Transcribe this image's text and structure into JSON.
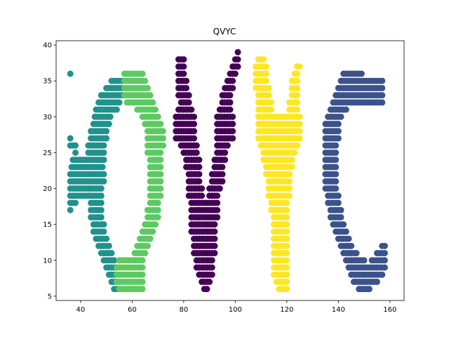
{
  "chart_data": {
    "type": "scatter",
    "title": "QVYC",
    "xlabel": "",
    "ylabel": "",
    "xlim": [
      30.5,
      165.5
    ],
    "ylim": [
      4.4,
      40.6
    ],
    "xticks": [
      40,
      60,
      80,
      100,
      120,
      140,
      160
    ],
    "yticks": [
      5,
      10,
      15,
      20,
      25,
      30,
      35,
      40
    ],
    "grid": false,
    "legend": "none",
    "point_size": 1,
    "series": [
      {
        "color": "#21918c",
        "rows": [
          [
            36,
            [
              36,
              36.5
            ]
          ],
          [
            35,
            [
              52,
              56
            ]
          ],
          [
            34,
            [
              50,
              56
            ]
          ],
          [
            33,
            [
              48,
              56
            ]
          ],
          [
            32,
            [
              47,
              55
            ]
          ],
          [
            31,
            [
              46,
              54
            ]
          ],
          [
            30,
            [
              45.5,
              52
            ]
          ],
          [
            29,
            [
              45,
              51
            ]
          ],
          [
            28,
            [
              44,
              50
            ]
          ],
          [
            27,
            [
              36,
              36
            ],
            [
              44,
              50
            ]
          ],
          [
            26,
            [
              36,
              38
            ],
            [
              43,
              49
            ]
          ],
          [
            25,
            [
              38,
              38
            ],
            [
              43,
              49
            ]
          ],
          [
            24,
            [
              37,
              49
            ]
          ],
          [
            23,
            [
              36.5,
              49
            ]
          ],
          [
            22,
            [
              36,
              49
            ]
          ],
          [
            21,
            [
              36,
              49
            ]
          ],
          [
            20,
            [
              36,
              48
            ]
          ],
          [
            19,
            [
              36,
              48
            ]
          ],
          [
            18,
            [
              36,
              38
            ],
            [
              44,
              48
            ]
          ],
          [
            17,
            [
              36,
              36
            ],
            [
              44,
              48
            ]
          ],
          [
            16,
            [
              44,
              48
            ]
          ],
          [
            15,
            [
              45,
              49
            ]
          ],
          [
            14,
            [
              45,
              49
            ]
          ],
          [
            13,
            [
              46,
              50
            ]
          ],
          [
            12,
            [
              47,
              51
            ]
          ],
          [
            11,
            [
              48,
              52
            ]
          ],
          [
            10,
            [
              49,
              53
            ]
          ],
          [
            9,
            [
              50,
              54
            ]
          ],
          [
            8,
            [
              51,
              54
            ]
          ],
          [
            7,
            [
              52,
              54
            ]
          ],
          [
            6,
            [
              53,
              54
            ]
          ]
        ]
      },
      {
        "color": "#5ec962",
        "rows": [
          [
            36,
            [
              57,
              64
            ]
          ],
          [
            35,
            [
              57,
              65
            ]
          ],
          [
            34,
            [
              57,
              66
            ]
          ],
          [
            33,
            [
              57,
              67
            ]
          ],
          [
            32,
            [
              58,
              68
            ]
          ],
          [
            31,
            [
              62,
              69
            ]
          ],
          [
            30,
            [
              64,
              70
            ]
          ],
          [
            29,
            [
              65,
              71
            ]
          ],
          [
            28,
            [
              66,
              72
            ]
          ],
          [
            27,
            [
              66,
              72
            ]
          ],
          [
            26,
            [
              66,
              72
            ]
          ],
          [
            25,
            [
              66,
              71
            ]
          ],
          [
            24,
            [
              67,
              71
            ]
          ],
          [
            23,
            [
              67,
              71
            ]
          ],
          [
            22,
            [
              67,
              71
            ]
          ],
          [
            21,
            [
              67,
              71
            ]
          ],
          [
            20,
            [
              67,
              71
            ]
          ],
          [
            19,
            [
              67,
              71
            ]
          ],
          [
            18,
            [
              67,
              70
            ]
          ],
          [
            17,
            [
              66,
              70
            ]
          ],
          [
            16,
            [
              66,
              70
            ]
          ],
          [
            15,
            [
              65,
              69
            ]
          ],
          [
            14,
            [
              64,
              68
            ]
          ],
          [
            13,
            [
              63,
              67
            ]
          ],
          [
            12,
            [
              62,
              66
            ]
          ],
          [
            11,
            [
              61,
              65
            ]
          ],
          [
            10,
            [
              55,
              64
            ]
          ],
          [
            9,
            [
              54,
              64
            ]
          ],
          [
            8,
            [
              54,
              64
            ]
          ],
          [
            7,
            [
              54,
              64
            ]
          ],
          [
            6,
            [
              55,
              64
            ]
          ]
        ]
      },
      {
        "color": "#440154",
        "rows": [
          [
            39,
            [
              101,
              101
            ]
          ],
          [
            38,
            [
              78,
              80
            ],
            [
              100,
              101
            ]
          ],
          [
            37,
            [
              78,
              80
            ],
            [
              99,
              101
            ]
          ],
          [
            36,
            [
              78,
              80
            ],
            [
              98,
              100
            ]
          ],
          [
            35,
            [
              78,
              81
            ],
            [
              97,
              99
            ]
          ],
          [
            34,
            [
              78,
              81
            ],
            [
              96,
              99
            ]
          ],
          [
            33,
            [
              78,
              82
            ],
            [
              95,
              98
            ]
          ],
          [
            32,
            [
              79,
              82
            ],
            [
              95,
              98
            ]
          ],
          [
            31,
            [
              78,
              83
            ],
            [
              94,
              98
            ]
          ],
          [
            30,
            [
              77,
              84
            ],
            [
              93,
              99
            ]
          ],
          [
            29,
            [
              77,
              84
            ],
            [
              93,
              99
            ]
          ],
          [
            28,
            [
              77,
              84
            ],
            [
              93,
              99
            ]
          ],
          [
            27,
            [
              77,
              84
            ],
            [
              93,
              99
            ]
          ],
          [
            26,
            [
              79,
              85
            ],
            [
              93,
              97
            ]
          ],
          [
            25,
            [
              80,
              85
            ],
            [
              93,
              96
            ]
          ],
          [
            24,
            [
              81,
              86
            ],
            [
              92,
              96
            ]
          ],
          [
            23,
            [
              81,
              86
            ],
            [
              92,
              95
            ]
          ],
          [
            22,
            [
              82,
              86
            ],
            [
              91,
              95
            ]
          ],
          [
            21,
            [
              82,
              86
            ],
            [
              91,
              95
            ]
          ],
          [
            20,
            [
              82,
              87
            ],
            [
              90,
              94
            ]
          ],
          [
            19,
            [
              82,
              87
            ],
            [
              90,
              93
            ]
          ],
          [
            18,
            [
              83,
              88
            ],
            [
              89,
              93
            ]
          ],
          [
            17,
            [
              83,
              93
            ]
          ],
          [
            16,
            [
              83,
              93
            ]
          ],
          [
            15,
            [
              83,
              92
            ]
          ],
          [
            14,
            [
              83,
              92
            ]
          ],
          [
            13,
            [
              84,
              92
            ]
          ],
          [
            12,
            [
              84,
              92
            ]
          ],
          [
            11,
            [
              84,
              92
            ]
          ],
          [
            10,
            [
              85,
              91
            ]
          ],
          [
            9,
            [
              85,
              91
            ]
          ],
          [
            8,
            [
              86,
              91
            ]
          ],
          [
            7,
            [
              87,
              90
            ]
          ],
          [
            6,
            [
              88,
              89
            ]
          ]
        ]
      },
      {
        "color": "#fde725",
        "rows": [
          [
            38,
            [
              109,
              111
            ]
          ],
          [
            37,
            [
              108,
              112
            ],
            [
              124,
              125
            ]
          ],
          [
            36,
            [
              108,
              112
            ],
            [
              123,
              124
            ]
          ],
          [
            35,
            [
              108,
              112
            ],
            [
              122,
              124
            ]
          ],
          [
            34,
            [
              108,
              113
            ],
            [
              122,
              124
            ]
          ],
          [
            33,
            [
              109,
              113
            ],
            [
              122,
              124
            ]
          ],
          [
            32,
            [
              109,
              114
            ],
            [
              121,
              124
            ]
          ],
          [
            31,
            [
              109,
              114
            ],
            [
              121,
              124
            ]
          ],
          [
            30,
            [
              109,
              125
            ]
          ],
          [
            29,
            [
              109,
              125
            ]
          ],
          [
            28,
            [
              109,
              125
            ]
          ],
          [
            27,
            [
              109,
              125
            ]
          ],
          [
            26,
            [
              110,
              124
            ]
          ],
          [
            25,
            [
              111,
              123
            ]
          ],
          [
            24,
            [
              111,
              122
            ]
          ],
          [
            23,
            [
              112,
              122
            ]
          ],
          [
            22,
            [
              112,
              121
            ]
          ],
          [
            21,
            [
              113,
              121
            ]
          ],
          [
            20,
            [
              113,
              121
            ]
          ],
          [
            19,
            [
              113,
              121
            ]
          ],
          [
            18,
            [
              114,
              120
            ]
          ],
          [
            17,
            [
              114,
              120
            ]
          ],
          [
            16,
            [
              115,
              120
            ]
          ],
          [
            15,
            [
              115,
              120
            ]
          ],
          [
            14,
            [
              115,
              120
            ]
          ],
          [
            13,
            [
              115,
              120
            ]
          ],
          [
            12,
            [
              115,
              120
            ]
          ],
          [
            11,
            [
              115,
              120
            ]
          ],
          [
            10,
            [
              115,
              120
            ]
          ],
          [
            9,
            [
              115,
              120
            ]
          ],
          [
            8,
            [
              115,
              120
            ]
          ],
          [
            7,
            [
              116,
              120
            ]
          ],
          [
            6,
            [
              117,
              120
            ]
          ]
        ]
      },
      {
        "color": "#3b528b",
        "rows": [
          [
            36,
            [
              142,
              149
            ]
          ],
          [
            35,
            [
              141,
              157
            ]
          ],
          [
            34,
            [
              140,
              157
            ]
          ],
          [
            33,
            [
              139,
              157
            ]
          ],
          [
            32,
            [
              138,
              157
            ]
          ],
          [
            31,
            [
              137,
              143
            ]
          ],
          [
            30,
            [
              136,
              141
            ]
          ],
          [
            29,
            [
              135,
              140
            ]
          ],
          [
            28,
            [
              135,
              140
            ]
          ],
          [
            27,
            [
              135,
              140
            ]
          ],
          [
            26,
            [
              135,
              139
            ]
          ],
          [
            25,
            [
              135,
              139
            ]
          ],
          [
            24,
            [
              135,
              139
            ]
          ],
          [
            23,
            [
              135,
              139
            ]
          ],
          [
            22,
            [
              135,
              139
            ]
          ],
          [
            21,
            [
              135,
              139
            ]
          ],
          [
            20,
            [
              135,
              139
            ]
          ],
          [
            19,
            [
              136,
              140
            ]
          ],
          [
            18,
            [
              136,
              140
            ]
          ],
          [
            17,
            [
              137,
              141
            ]
          ],
          [
            16,
            [
              137,
              141
            ]
          ],
          [
            15,
            [
              138,
              142
            ]
          ],
          [
            14,
            [
              139,
              143
            ]
          ],
          [
            13,
            [
              140,
              144
            ]
          ],
          [
            12,
            [
              141,
              145
            ],
            [
              157,
              158
            ]
          ],
          [
            11,
            [
              142,
              147
            ],
            [
              155,
              158
            ]
          ],
          [
            10,
            [
              143,
              150
            ],
            [
              153,
              158
            ]
          ],
          [
            9,
            [
              144,
              158
            ]
          ],
          [
            8,
            [
              145,
              157
            ]
          ],
          [
            7,
            [
              146,
              155
            ]
          ],
          [
            6,
            [
              148,
              152
            ]
          ]
        ]
      }
    ]
  }
}
